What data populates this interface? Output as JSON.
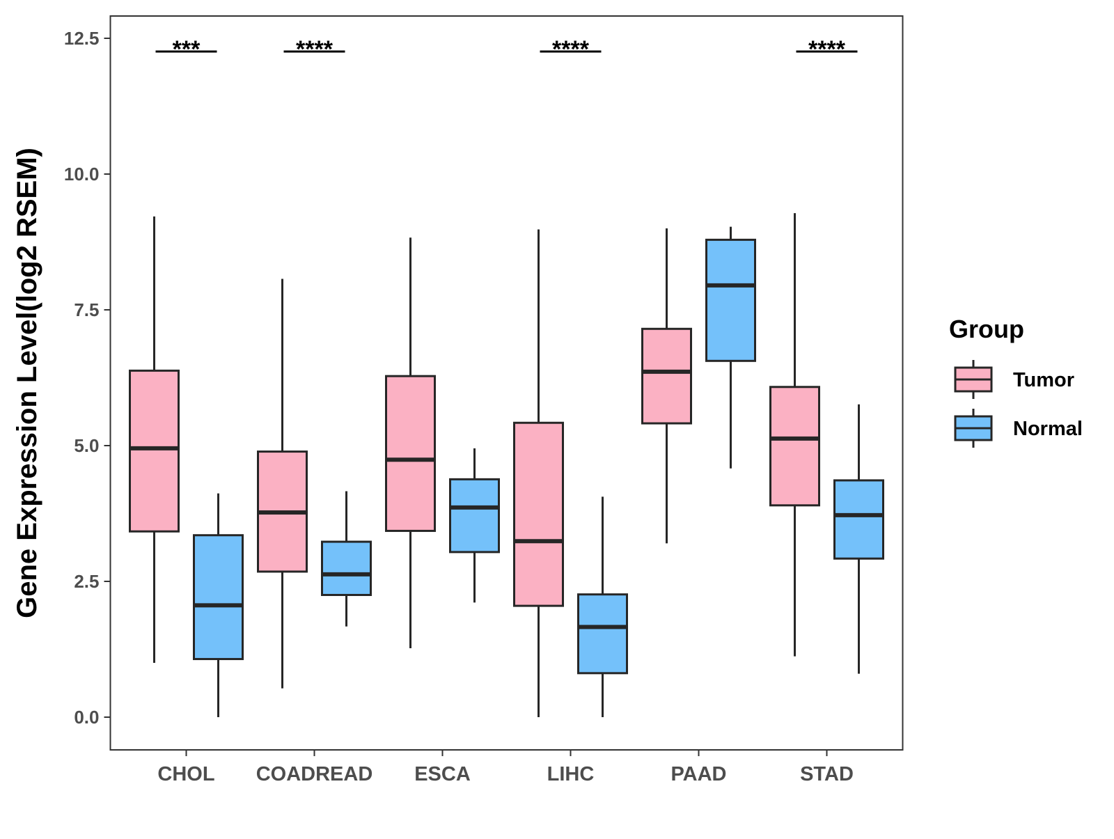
{
  "chart_data": {
    "type": "boxplot",
    "title": "",
    "xlabel": "",
    "ylabel": "Gene Expression Level(log2 RSEM)",
    "ylim": [
      -0.6,
      12.9
    ],
    "yticks": [
      "0.0",
      "2.5",
      "5.0",
      "7.5",
      "10.0",
      "12.5"
    ],
    "ytick_values": [
      0,
      2.5,
      5,
      7.5,
      10,
      12.5
    ],
    "categories": [
      "CHOL",
      "COADREAD",
      "ESCA",
      "LIHC",
      "PAAD",
      "STAD"
    ],
    "series": [
      {
        "name": "Tumor",
        "color": "#FBB1C3",
        "boxes": [
          {
            "min": 1.0,
            "q1": 3.42,
            "median": 4.95,
            "q3": 6.38,
            "max": 9.22
          },
          {
            "min": 0.53,
            "q1": 2.68,
            "median": 3.77,
            "q3": 4.89,
            "max": 8.07
          },
          {
            "min": 1.27,
            "q1": 3.43,
            "median": 4.74,
            "q3": 6.28,
            "max": 8.83
          },
          {
            "min": 0.0,
            "q1": 2.05,
            "median": 3.24,
            "q3": 5.42,
            "max": 8.98
          },
          {
            "min": 3.2,
            "q1": 5.41,
            "median": 6.36,
            "q3": 7.15,
            "max": 9.0
          },
          {
            "min": 1.12,
            "q1": 3.9,
            "median": 5.13,
            "q3": 6.08,
            "max": 9.28
          }
        ]
      },
      {
        "name": "Normal",
        "color": "#74C1FA",
        "boxes": [
          {
            "min": 0.0,
            "q1": 1.07,
            "median": 2.06,
            "q3": 3.35,
            "max": 4.12
          },
          {
            "min": 1.67,
            "q1": 2.25,
            "median": 2.63,
            "q3": 3.23,
            "max": 4.16
          },
          {
            "min": 2.11,
            "q1": 3.04,
            "median": 3.86,
            "q3": 4.38,
            "max": 4.95
          },
          {
            "min": 0.0,
            "q1": 0.81,
            "median": 1.66,
            "q3": 2.26,
            "max": 4.06
          },
          {
            "min": 4.58,
            "q1": 6.56,
            "median": 7.95,
            "q3": 8.79,
            "max": 9.03
          },
          {
            "min": 0.8,
            "q1": 2.92,
            "median": 3.72,
            "q3": 4.36,
            "max": 5.76
          }
        ]
      }
    ],
    "annotations": [
      {
        "category": "CHOL",
        "text": "***"
      },
      {
        "category": "COADREAD",
        "text": "****"
      },
      {
        "category": "LIHC",
        "text": "****"
      },
      {
        "category": "STAD",
        "text": "****"
      }
    ],
    "legend": {
      "title": "Group",
      "position": "right",
      "items": [
        {
          "label": "Tumor",
          "color": "#FBB1C3"
        },
        {
          "label": "Normal",
          "color": "#74C1FA"
        }
      ]
    },
    "line_color": "#262626",
    "panel_border_color": "#333333"
  }
}
